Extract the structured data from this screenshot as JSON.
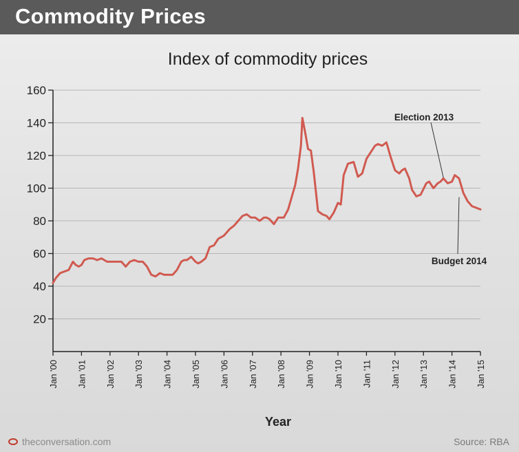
{
  "header": {
    "title": "Commodity Prices"
  },
  "footer": {
    "brand": "theconversation.com",
    "source": "Source: RBA"
  },
  "colors": {
    "line": "#d05a50",
    "header_bg": "#5a5a5a",
    "axis": "#222222"
  },
  "chart_data": {
    "type": "line",
    "title": "Index of commodity prices",
    "xlabel": "Year",
    "ylabel": "",
    "ylim": [
      0,
      160
    ],
    "yticks": [
      20,
      40,
      60,
      80,
      100,
      120,
      140,
      160
    ],
    "xlim": [
      2000,
      2015
    ],
    "xticks": [
      {
        "x": 2000,
        "label": "Jan '00"
      },
      {
        "x": 2001,
        "label": "Jan '01"
      },
      {
        "x": 2002,
        "label": "Jan '02"
      },
      {
        "x": 2003,
        "label": "Jan '03"
      },
      {
        "x": 2004,
        "label": "Jan '04"
      },
      {
        "x": 2005,
        "label": "Jan '05"
      },
      {
        "x": 2006,
        "label": "Jan '06"
      },
      {
        "x": 2007,
        "label": "Jan '07"
      },
      {
        "x": 2008,
        "label": "Jan '08"
      },
      {
        "x": 2009,
        "label": "Jan '09"
      },
      {
        "x": 2010,
        "label": "Jan '10"
      },
      {
        "x": 2011,
        "label": "Jan '11"
      },
      {
        "x": 2012,
        "label": "Jan '12"
      },
      {
        "x": 2013,
        "label": "Jan '13"
      },
      {
        "x": 2014,
        "label": "Jan '14"
      },
      {
        "x": 2015,
        "label": "Jan '15"
      }
    ],
    "grid": "horizontal",
    "series": [
      {
        "x": [
          2000.0,
          2000.1,
          2000.25,
          2000.4,
          2000.55,
          2000.7,
          2000.8,
          2000.9,
          2001.0,
          2001.1,
          2001.25,
          2001.4,
          2001.55,
          2001.7,
          2001.8,
          2001.9,
          2002.0,
          2002.2,
          2002.4,
          2002.55,
          2002.7,
          2002.85,
          2003.0,
          2003.15,
          2003.3,
          2003.45,
          2003.6,
          2003.75,
          2003.9,
          2004.1,
          2004.2,
          2004.35,
          2004.5,
          2004.6,
          2004.7,
          2004.85,
          2005.0,
          2005.1,
          2005.2,
          2005.35,
          2005.5,
          2005.65,
          2005.8,
          2006.0,
          2006.2,
          2006.35,
          2006.5,
          2006.65,
          2006.8,
          2006.95,
          2007.1,
          2007.25,
          2007.4,
          2007.5,
          2007.6,
          2007.75,
          2007.9,
          2008.1,
          2008.25,
          2008.4,
          2008.5,
          2008.6,
          2008.7,
          2008.75,
          2008.85,
          2008.95,
          2009.05,
          2009.15,
          2009.3,
          2009.45,
          2009.6,
          2009.7,
          2009.85,
          2010.0,
          2010.1,
          2010.2,
          2010.35,
          2010.55,
          2010.7,
          2010.85,
          2011.0,
          2011.15,
          2011.3,
          2011.4,
          2011.55,
          2011.7,
          2011.85,
          2012.0,
          2012.15,
          2012.25,
          2012.35,
          2012.5,
          2012.6,
          2012.75,
          2012.9,
          2013.1,
          2013.2,
          2013.35,
          2013.5,
          2013.6,
          2013.7,
          2013.85,
          2014.0,
          2014.1,
          2014.25,
          2014.4,
          2014.55,
          2014.7,
          2014.85,
          2015.0
        ],
        "y": [
          42,
          45,
          48,
          49,
          50,
          55,
          53,
          52,
          53,
          56,
          57,
          57,
          56,
          57,
          56,
          55,
          55,
          55,
          55,
          52,
          55,
          56,
          55,
          55,
          52,
          47,
          46,
          48,
          47,
          47,
          47,
          50,
          55,
          56,
          56,
          58,
          55,
          54,
          55,
          57,
          64,
          65,
          69,
          71,
          75,
          77,
          80,
          83,
          84,
          82,
          82,
          80,
          82,
          82,
          81,
          78,
          82,
          82,
          87,
          96,
          102,
          112,
          126,
          143,
          134,
          124,
          123,
          110,
          86,
          84,
          83,
          81,
          85,
          91,
          90,
          108,
          115,
          116,
          107,
          109,
          118,
          122,
          126,
          127,
          126,
          128,
          119,
          111,
          109,
          111,
          112,
          106,
          99,
          95,
          96,
          103,
          104,
          100,
          103,
          104,
          106,
          103,
          104,
          108,
          106,
          97,
          92,
          89,
          88,
          87
        ]
      }
    ],
    "annotations": [
      {
        "text": "Election 2013",
        "x": 2013.7,
        "y": 103
      },
      {
        "text": "Budget 2014",
        "x": 2014.25,
        "y": 97
      }
    ]
  }
}
